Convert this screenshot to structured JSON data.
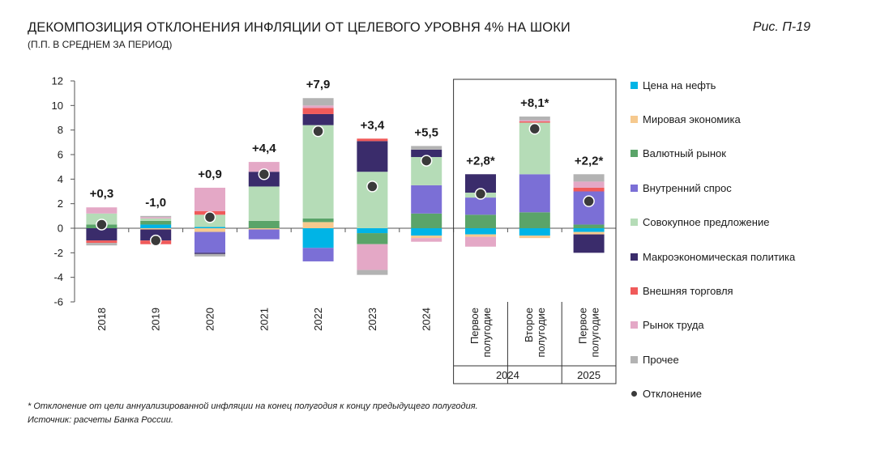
{
  "title": "ДЕКОМПОЗИЦИЯ ОТКЛОНЕНИЯ ИНФЛЯЦИИ ОТ ЦЕЛЕВОГО УРОВНЯ 4% НА ШОКИ",
  "subtitle": "(П.П. В СРЕДНЕМ ЗА ПЕРИОД)",
  "figure_label": "Рис. П-19",
  "footnote": "* Отклонение от цели аннуализированной инфляции на конец полугодия к концу предыдущего полугодия.",
  "source": "Источник: расчеты Банка России.",
  "legend": [
    {
      "name": "Цена на нефть",
      "color": "#00b4e6",
      "kind": "bar"
    },
    {
      "name": "Мировая экономика",
      "color": "#f6c98e",
      "kind": "bar"
    },
    {
      "name": "Валютный рынок",
      "color": "#5aa469",
      "kind": "bar"
    },
    {
      "name": "Внутренний спрос",
      "color": "#7b6fd6",
      "kind": "bar"
    },
    {
      "name": "Совокупное предложение",
      "color": "#b5dcb7",
      "kind": "bar"
    },
    {
      "name": "Макроэкономическая политика",
      "color": "#3a2c6b",
      "kind": "bar"
    },
    {
      "name": "Внешняя торговля",
      "color": "#f05a5a",
      "kind": "bar"
    },
    {
      "name": "Рынок труда",
      "color": "#e4a8c6",
      "kind": "bar"
    },
    {
      "name": "Прочее",
      "color": "#b3b3b3",
      "kind": "bar"
    },
    {
      "name": "Отклонение",
      "color": "#3a3a3a",
      "kind": "dot"
    }
  ],
  "chart_data": {
    "type": "bar",
    "stacked": true,
    "ylim": [
      -6,
      12
    ],
    "yticks": [
      -6,
      -4,
      -2,
      0,
      2,
      4,
      6,
      8,
      10,
      12
    ],
    "categories": [
      "2018",
      "2019",
      "2020",
      "2021",
      "2022",
      "2023",
      "2024",
      "Первое полугодие",
      "Второе полугодие",
      "Первое полугодие"
    ],
    "category_lines": [
      [
        "2018"
      ],
      [
        "2019"
      ],
      [
        "2020"
      ],
      [
        "2021"
      ],
      [
        "2022"
      ],
      [
        "2023"
      ],
      [
        "2024"
      ],
      [
        "Первое",
        "полугодие"
      ],
      [
        "Второе",
        "полугодие"
      ],
      [
        "Первое",
        "полугодие"
      ]
    ],
    "group_labels": [
      {
        "label": "2024",
        "from": 7,
        "to": 8
      },
      {
        "label": "2025",
        "from": 9,
        "to": 9
      }
    ],
    "boxed_from": 7,
    "deviation_labels": [
      "+0,3",
      "-1,0",
      "+0,9",
      "+4,4",
      "+7,9",
      "+3,4",
      "+5,5",
      "+2,8*",
      "+8,1*",
      "+2,2*"
    ],
    "deviation": [
      0.3,
      -1.0,
      0.9,
      4.4,
      7.9,
      3.4,
      5.5,
      2.8,
      8.1,
      2.2
    ],
    "series": [
      {
        "name": "Цена на нефть",
        "values": [
          0,
          0.3,
          0.1,
          0,
          -1.6,
          -0.4,
          -0.6,
          -0.5,
          -0.6,
          -0.3
        ]
      },
      {
        "name": "Мировая экономика",
        "values": [
          0,
          -0.1,
          -0.3,
          -0.1,
          0.5,
          0,
          -0.2,
          -0.2,
          -0.2,
          -0.2
        ]
      },
      {
        "name": "Валютный рынок",
        "values": [
          0.3,
          0.3,
          0,
          0.6,
          0.3,
          -0.9,
          1.2,
          1.1,
          1.3,
          0.3
        ]
      },
      {
        "name": "Внутренний спрос",
        "values": [
          0,
          0,
          -1.7,
          -0.8,
          -1.1,
          0,
          2.3,
          1.4,
          3.1,
          2.7
        ]
      },
      {
        "name": "Совокупное предложение",
        "values": [
          0.9,
          0.2,
          1.0,
          2.8,
          7.6,
          4.6,
          2.3,
          0.4,
          4.2,
          0
        ]
      },
      {
        "name": "Макроэкономическая политика",
        "values": [
          -1.0,
          -0.9,
          -0.1,
          1.2,
          0.9,
          2.5,
          0.6,
          1.5,
          0,
          -1.5
        ]
      },
      {
        "name": "Внешняя торговля",
        "values": [
          -0.2,
          -0.3,
          0.3,
          0,
          0.5,
          0.2,
          0,
          0,
          0.1,
          0.3
        ]
      },
      {
        "name": "Рынок труда",
        "values": [
          0.5,
          0.1,
          1.9,
          0.8,
          0.2,
          -2.1,
          -0.3,
          -0.8,
          0.1,
          0.5
        ]
      },
      {
        "name": "Прочее",
        "values": [
          -0.2,
          0.1,
          -0.2,
          0,
          0.6,
          -0.4,
          0.3,
          0,
          0.3,
          0.6
        ]
      }
    ]
  }
}
